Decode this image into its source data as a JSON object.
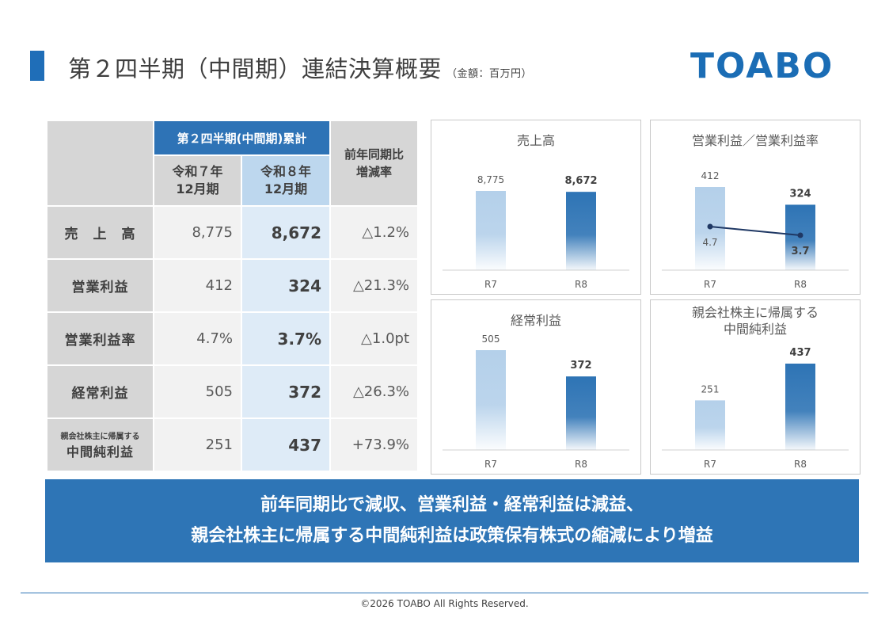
{
  "header": {
    "title": "第２四半期（中間期）連結決算概要",
    "unit": "（金額：百万円）",
    "logo": "TOABO"
  },
  "table": {
    "group_header": "第２四半期(中間期)累計",
    "col_r7": [
      "令和７年",
      "12月期"
    ],
    "col_r8": [
      "令和８年",
      "12月期"
    ],
    "col_yoy": [
      "前年同期比",
      "増減率"
    ],
    "rows": [
      {
        "label": "売　上　高",
        "r7": "8,775",
        "r8": "8,672",
        "yoy": "△1.2%"
      },
      {
        "label": "営業利益",
        "r7": "412",
        "r8": "324",
        "yoy": "△21.3%"
      },
      {
        "label": "営業利益率",
        "r7": "4.7%",
        "r8": "3.7%",
        "yoy": "△1.0pt"
      },
      {
        "label": "経常利益",
        "r7": "505",
        "r8": "372",
        "yoy": "△26.3%"
      },
      {
        "label_small": "親会社株主に帰属する",
        "label": "中間純利益",
        "r7": "251",
        "r8": "437",
        "yoy": "+73.9%"
      }
    ]
  },
  "chart_data": [
    {
      "type": "bar",
      "title": "売上高",
      "categories": [
        "R7",
        "R8"
      ],
      "values": [
        8775,
        8672
      ],
      "labels": [
        "8,775",
        "8,672"
      ]
    },
    {
      "type": "bar+line",
      "title": "営業利益／営業利益率",
      "categories": [
        "R7",
        "R8"
      ],
      "values": [
        412,
        324
      ],
      "labels": [
        "412",
        "324"
      ],
      "line_values": [
        4.7,
        3.7
      ],
      "line_labels": [
        "4.7",
        "3.7"
      ]
    },
    {
      "type": "bar",
      "title": "経常利益",
      "categories": [
        "R7",
        "R8"
      ],
      "values": [
        505,
        372
      ],
      "labels": [
        "505",
        "372"
      ]
    },
    {
      "type": "bar",
      "title": [
        "親会社株主に帰属する",
        "中間純利益"
      ],
      "categories": [
        "R7",
        "R8"
      ],
      "values": [
        251,
        437
      ],
      "labels": [
        "251",
        "437"
      ]
    }
  ],
  "colors": {
    "r7_bar": "#b4d0ea",
    "r8_bar": "#2e74b5",
    "line": "#1f3864",
    "accent": "#2e75b6"
  },
  "banner": {
    "line1": "前年同期比で減収、営業利益・経常利益は減益、",
    "line2": "親会社株主に帰属する中間純利益は政策保有株式の縮減により増益"
  },
  "footer": {
    "copyright": "©2026 TOABO All Rights Reserved."
  }
}
